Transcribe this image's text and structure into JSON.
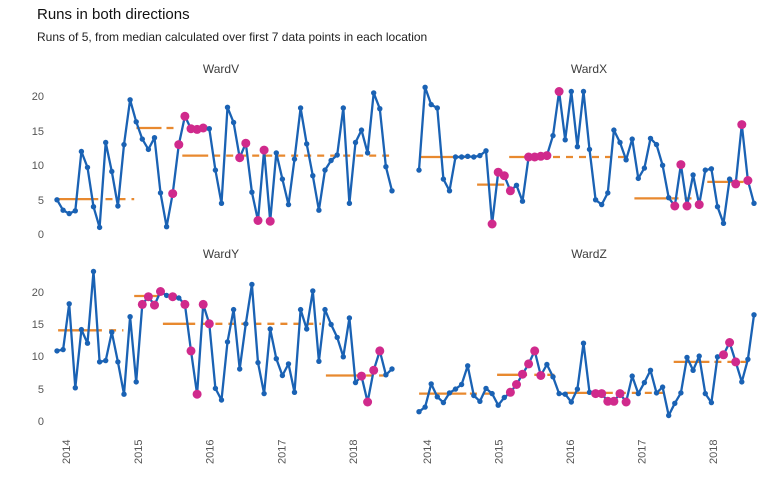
{
  "header": {
    "title": "Runs in both directions",
    "subtitle": "Runs of 5, from median calculated over first 7 data points in each location"
  },
  "colors": {
    "line": "#1A62B4",
    "point": "#1A62B4",
    "signal": "#D02A8C",
    "median": "#E8892F",
    "strip_text": "#3d3d3d",
    "axis_text": "#555555",
    "background": "#FFFFFF"
  },
  "chart_data": {
    "type": "line",
    "title": "Runs in both directions",
    "subtitle": "Runs of 5, from median calculated over first 7 data points in each location",
    "facets": "2x2 grid, shared axes",
    "x_axis": {
      "ticks": [
        2014,
        2015,
        2016,
        2017,
        2018
      ],
      "start": 2013.89,
      "end": 2018.55,
      "note": "monthly points, evenly spaced"
    },
    "y_axis": {
      "ticks": [
        20,
        15,
        10,
        5,
        0
      ],
      "lim": [
        0,
        22.5
      ]
    },
    "legend": "blue dots = data, larger magenta dots = points in a run signal, orange line = median (solid) / extended median (dashed)",
    "panels": [
      {
        "name": "WardV",
        "values": [
          5.1,
          3.6,
          3.1,
          3.5,
          12.1,
          9.8,
          4.1,
          1.1,
          13.4,
          9.2,
          4.2,
          13.1,
          19.6,
          16.4,
          13.9,
          12.4,
          14.1,
          6.1,
          1.2,
          6.0,
          13.1,
          17.2,
          15.4,
          15.3,
          15.5,
          15.4,
          9.4,
          4.6,
          18.5,
          16.3,
          11.2,
          13.3,
          6.2,
          2.1,
          12.3,
          2.0,
          11.9,
          8.1,
          4.4,
          11.0,
          18.4,
          13.2,
          8.6,
          3.6,
          9.4,
          10.8,
          11.6,
          18.4,
          4.6,
          13.4,
          15.2,
          11.9,
          20.6,
          18.3,
          9.9,
          6.4
        ],
        "signals": [
          19,
          20,
          21,
          22,
          23,
          24,
          30,
          31,
          33,
          34,
          35
        ],
        "medians": [
          {
            "value": 5.2,
            "from": 2013.89,
            "to": 2014.45,
            "dashed": false
          },
          {
            "value": 5.2,
            "from": 2014.55,
            "to": 2014.95,
            "dashed": true
          },
          {
            "value": 15.5,
            "from": 2014.98,
            "to": 2015.33,
            "dashed": false
          },
          {
            "value": 15.5,
            "from": 2015.4,
            "to": 2015.58,
            "dashed": true
          },
          {
            "value": 11.5,
            "from": 2015.62,
            "to": 2015.98,
            "dashed": false
          },
          {
            "value": 11.5,
            "from": 2016.05,
            "to": 2018.5,
            "dashed": true
          }
        ]
      },
      {
        "name": "WardX",
        "values": [
          9.4,
          21.4,
          18.9,
          18.4,
          8.1,
          6.4,
          11.3,
          11.3,
          11.4,
          11.3,
          11.5,
          12.2,
          1.6,
          9.1,
          8.6,
          6.4,
          7.2,
          4.9,
          11.3,
          11.3,
          11.4,
          11.5,
          14.4,
          20.8,
          13.8,
          20.8,
          12.8,
          20.8,
          12.4,
          5.1,
          4.4,
          6.1,
          15.2,
          13.4,
          10.9,
          13.9,
          8.2,
          9.7,
          14.0,
          13.1,
          10.1,
          5.4,
          4.2,
          10.2,
          4.2,
          8.7,
          4.4,
          9.4,
          9.6,
          4.1,
          1.7,
          8.1,
          7.4,
          16.0,
          7.9,
          4.6
        ],
        "signals": [
          12,
          13,
          14,
          15,
          18,
          19,
          20,
          21,
          23,
          42,
          43,
          44,
          46,
          52,
          53,
          54
        ],
        "medians": [
          {
            "value": 11.3,
            "from": 2013.89,
            "to": 2014.55,
            "dashed": false
          },
          {
            "value": 7.3,
            "from": 2014.7,
            "to": 2015.08,
            "dashed": false
          },
          {
            "value": 11.3,
            "from": 2015.15,
            "to": 2015.5,
            "dashed": false
          },
          {
            "value": 11.3,
            "from": 2015.58,
            "to": 2016.85,
            "dashed": true
          },
          {
            "value": 5.3,
            "from": 2016.9,
            "to": 2017.35,
            "dashed": false
          },
          {
            "value": 5.3,
            "from": 2017.42,
            "to": 2017.8,
            "dashed": true
          },
          {
            "value": 7.7,
            "from": 2017.92,
            "to": 2018.28,
            "dashed": false
          },
          {
            "value": 7.7,
            "from": 2018.33,
            "to": 2018.5,
            "dashed": true
          }
        ]
      },
      {
        "name": "WardY",
        "values": [
          11.0,
          11.2,
          18.3,
          5.3,
          14.3,
          12.2,
          23.3,
          9.3,
          9.5,
          13.9,
          9.3,
          4.3,
          16.3,
          6.2,
          18.2,
          19.4,
          18.1,
          20.2,
          19.6,
          19.4,
          19.2,
          18.2,
          11.0,
          4.3,
          18.2,
          15.2,
          5.2,
          3.4,
          12.4,
          17.4,
          8.2,
          15.2,
          21.3,
          9.2,
          4.4,
          14.4,
          9.8,
          7.2,
          9.0,
          4.6,
          17.4,
          14.4,
          20.3,
          9.4,
          17.4,
          15.1,
          13.1,
          10.1,
          16.1,
          6.1,
          7.1,
          3.1,
          8.0,
          11.0,
          7.3,
          8.2
        ],
        "signals": [
          14,
          15,
          16,
          17,
          19,
          21,
          22,
          23,
          24,
          25,
          50,
          51,
          52,
          53
        ],
        "medians": [
          {
            "value": 14.2,
            "from": 2013.89,
            "to": 2014.5,
            "dashed": false
          },
          {
            "value": 14.2,
            "from": 2014.6,
            "to": 2014.8,
            "dashed": true
          },
          {
            "value": 19.5,
            "from": 2014.95,
            "to": 2015.3,
            "dashed": false
          },
          {
            "value": 15.2,
            "from": 2015.35,
            "to": 2015.8,
            "dashed": false
          },
          {
            "value": 15.2,
            "from": 2015.9,
            "to": 2017.55,
            "dashed": true
          },
          {
            "value": 7.2,
            "from": 2017.62,
            "to": 2018.1,
            "dashed": false
          },
          {
            "value": 7.2,
            "from": 2018.18,
            "to": 2018.5,
            "dashed": true
          }
        ]
      },
      {
        "name": "WardZ",
        "values": [
          1.6,
          2.3,
          5.9,
          3.9,
          3.0,
          4.5,
          5.1,
          5.8,
          8.7,
          4.1,
          3.2,
          5.2,
          4.4,
          2.6,
          3.8,
          4.6,
          5.8,
          7.4,
          9.0,
          11.0,
          7.2,
          8.9,
          7.0,
          4.4,
          4.3,
          3.1,
          5.1,
          12.2,
          4.6,
          4.4,
          4.4,
          3.2,
          3.2,
          4.4,
          3.1,
          7.1,
          4.4,
          6.1,
          8.0,
          4.5,
          5.4,
          1.0,
          2.9,
          4.5,
          10.0,
          8.0,
          10.2,
          4.4,
          3.0,
          10.1,
          10.4,
          12.3,
          9.3,
          6.2,
          9.7,
          16.6
        ],
        "signals": [
          15,
          16,
          17,
          18,
          19,
          20,
          29,
          30,
          31,
          32,
          33,
          34,
          50,
          51,
          52
        ],
        "medians": [
          {
            "value": 4.4,
            "from": 2013.89,
            "to": 2014.55,
            "dashed": false
          },
          {
            "value": 4.4,
            "from": 2014.6,
            "to": 2014.95,
            "dashed": true
          },
          {
            "value": 7.3,
            "from": 2014.98,
            "to": 2015.4,
            "dashed": false
          },
          {
            "value": 7.3,
            "from": 2015.5,
            "to": 2015.85,
            "dashed": true
          },
          {
            "value": 4.5,
            "from": 2015.95,
            "to": 2016.42,
            "dashed": false
          },
          {
            "value": 4.5,
            "from": 2016.5,
            "to": 2017.38,
            "dashed": true
          },
          {
            "value": 9.3,
            "from": 2017.45,
            "to": 2017.95,
            "dashed": false
          },
          {
            "value": 9.3,
            "from": 2018.02,
            "to": 2018.5,
            "dashed": true
          }
        ]
      }
    ]
  }
}
